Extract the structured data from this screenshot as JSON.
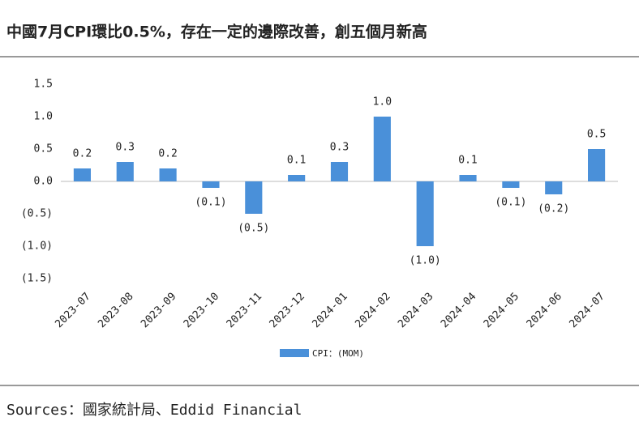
{
  "chart_data": {
    "type": "bar",
    "title": "中國7月CPI環比0.5%，存在一定的邊際改善，創五個月新高",
    "source": "Sources：國家統計局、Eddid Financial",
    "categories": [
      "2023-07",
      "2023-08",
      "2023-09",
      "2023-10",
      "2023-11",
      "2023-12",
      "2024-01",
      "2024-02",
      "2024-03",
      "2024-04",
      "2024-05",
      "2024-06",
      "2024-07"
    ],
    "series": [
      {
        "name": "CPI：(MOM)",
        "color": "#4a90d9",
        "values": [
          0.2,
          0.3,
          0.2,
          -0.1,
          -0.5,
          0.1,
          0.3,
          1.0,
          -1.0,
          0.1,
          -0.1,
          -0.2,
          0.5
        ],
        "value_labels": [
          "0.2",
          "0.3",
          "0.2",
          "(0.1)",
          "(0.5)",
          "0.1",
          "0.3",
          "1.0",
          "(1.0)",
          "0.1",
          "(0.1)",
          "(0.2)",
          "0.5"
        ]
      }
    ],
    "negative_color": "#e00000",
    "ylim": [
      -1.5,
      1.5
    ],
    "yticks": [
      1.5,
      {
        "value": 1.0,
        "label": "1.0"
      },
      0.5,
      {
        "value": 0.0,
        "label": "0.0"
      },
      {
        "value": -0.5,
        "label": "(0.5)"
      },
      {
        "value": -1.0,
        "label": "(1.0)"
      },
      {
        "value": -1.5,
        "label": "(1.5)"
      }
    ],
    "grid": false
  }
}
